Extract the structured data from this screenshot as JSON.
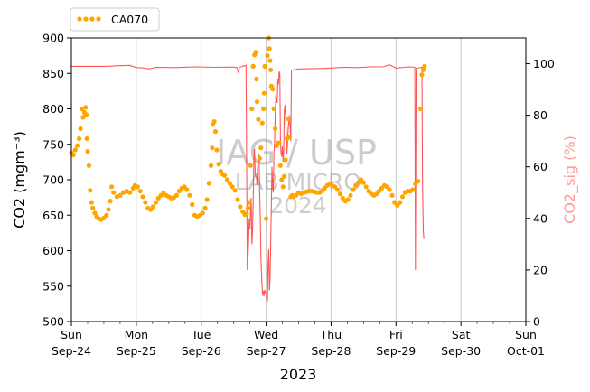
{
  "chart_data": {
    "type": "scatter",
    "xlabel": "2023",
    "ylabel_left": "CO2 (mgm⁻³)",
    "ylabel_right": "CO2_sig (%)",
    "ylim_left": [
      500,
      900
    ],
    "ylim_right": [
      0,
      110
    ],
    "xlim_days": [
      0,
      7
    ],
    "left_ticks": [
      "500",
      "550",
      "600",
      "650",
      "700",
      "750",
      "800",
      "850",
      "900"
    ],
    "right_ticks": [
      "0",
      "20",
      "40",
      "60",
      "80",
      "100"
    ],
    "x_ticks": [
      {
        "day": "Sun",
        "date": "Sep-24"
      },
      {
        "day": "Mon",
        "date": "Sep-25"
      },
      {
        "day": "Tue",
        "date": "Sep-26"
      },
      {
        "day": "Wed",
        "date": "Sep-27"
      },
      {
        "day": "Thu",
        "date": "Sep-28"
      },
      {
        "day": "Fri",
        "date": "Sep-29"
      },
      {
        "day": "Sat",
        "date": "Sep-30"
      },
      {
        "day": "Sun",
        "date": "Oct-01"
      }
    ],
    "grid": "vertical",
    "legend": {
      "placement": "top-left, outside",
      "label": "CA070"
    },
    "colors": {
      "co2": "#ffa500",
      "sig": "#ff4444"
    },
    "co2_series": {
      "name": "CA070",
      "points": [
        [
          0.0,
          738
        ],
        [
          0.03,
          735
        ],
        [
          0.06,
          742
        ],
        [
          0.09,
          748
        ],
        [
          0.12,
          758
        ],
        [
          0.14,
          772
        ],
        [
          0.16,
          800
        ],
        [
          0.18,
          788
        ],
        [
          0.2,
          795
        ],
        [
          0.22,
          802
        ],
        [
          0.23,
          792
        ],
        [
          0.24,
          758
        ],
        [
          0.25,
          740
        ],
        [
          0.27,
          720
        ],
        [
          0.29,
          685
        ],
        [
          0.31,
          668
        ],
        [
          0.33,
          660
        ],
        [
          0.36,
          653
        ],
        [
          0.39,
          648
        ],
        [
          0.42,
          645
        ],
        [
          0.46,
          644
        ],
        [
          0.5,
          646
        ],
        [
          0.54,
          650
        ],
        [
          0.57,
          658
        ],
        [
          0.6,
          670
        ],
        [
          0.62,
          690
        ],
        [
          0.65,
          682
        ],
        [
          0.7,
          676
        ],
        [
          0.75,
          678
        ],
        [
          0.8,
          682
        ],
        [
          0.85,
          684
        ],
        [
          0.9,
          682
        ],
        [
          0.95,
          688
        ],
        [
          0.98,
          692
        ],
        [
          1.02,
          690
        ],
        [
          1.06,
          684
        ],
        [
          1.1,
          676
        ],
        [
          1.14,
          668
        ],
        [
          1.18,
          660
        ],
        [
          1.22,
          658
        ],
        [
          1.26,
          662
        ],
        [
          1.3,
          668
        ],
        [
          1.34,
          674
        ],
        [
          1.38,
          678
        ],
        [
          1.42,
          681
        ],
        [
          1.46,
          678
        ],
        [
          1.5,
          676
        ],
        [
          1.54,
          674
        ],
        [
          1.58,
          675
        ],
        [
          1.62,
          678
        ],
        [
          1.66,
          684
        ],
        [
          1.7,
          688
        ],
        [
          1.74,
          690
        ],
        [
          1.78,
          686
        ],
        [
          1.82,
          678
        ],
        [
          1.86,
          665
        ],
        [
          1.9,
          650
        ],
        [
          1.94,
          648
        ],
        [
          1.98,
          650
        ],
        [
          2.02,
          653
        ],
        [
          2.06,
          660
        ],
        [
          2.09,
          672
        ],
        [
          2.12,
          695
        ],
        [
          2.15,
          720
        ],
        [
          2.17,
          745
        ],
        [
          2.18,
          778
        ],
        [
          2.2,
          782
        ],
        [
          2.22,
          768
        ],
        [
          2.24,
          742
        ],
        [
          2.27,
          722
        ],
        [
          2.3,
          712
        ],
        [
          2.33,
          708
        ],
        [
          2.36,
          706
        ],
        [
          2.4,
          700
        ],
        [
          2.44,
          695
        ],
        [
          2.48,
          690
        ],
        [
          2.52,
          685
        ],
        [
          2.56,
          672
        ],
        [
          2.6,
          662
        ],
        [
          2.64,
          655
        ],
        [
          2.67,
          651
        ],
        [
          2.7,
          652
        ],
        [
          2.72,
          660
        ],
        [
          2.74,
          668
        ],
        [
          2.76,
          720
        ],
        [
          2.78,
          800
        ],
        [
          2.8,
          860
        ],
        [
          2.82,
          876
        ],
        [
          2.84,
          880
        ],
        [
          2.85,
          842
        ],
        [
          2.86,
          810
        ],
        [
          2.88,
          785
        ],
        [
          2.9,
          730
        ],
        [
          2.92,
          745
        ],
        [
          2.94,
          780
        ],
        [
          2.96,
          800
        ],
        [
          2.97,
          822
        ],
        [
          2.98,
          860
        ],
        [
          3.0,
          645
        ],
        [
          3.02,
          875
        ],
        [
          3.04,
          900
        ],
        [
          3.05,
          885
        ],
        [
          3.06,
          868
        ],
        [
          3.07,
          855
        ],
        [
          3.08,
          832
        ],
        [
          3.1,
          828
        ],
        [
          3.12,
          800
        ],
        [
          3.14,
          772
        ],
        [
          3.16,
          748
        ],
        [
          3.18,
          752
        ],
        [
          3.2,
          752
        ],
        [
          3.22,
          720
        ],
        [
          3.24,
          700
        ],
        [
          3.26,
          690
        ],
        [
          3.28,
          705
        ],
        [
          3.3,
          728
        ],
        [
          3.32,
          758
        ],
        [
          3.34,
          786
        ],
        [
          3.36,
          760
        ],
        [
          3.38,
          676
        ],
        [
          3.4,
          678
        ],
        [
          3.42,
          676
        ],
        [
          3.46,
          678
        ],
        [
          3.5,
          682
        ],
        [
          3.54,
          680
        ],
        [
          3.58,
          682
        ],
        [
          3.62,
          683
        ],
        [
          3.66,
          684
        ],
        [
          3.7,
          684
        ],
        [
          3.74,
          683
        ],
        [
          3.78,
          682
        ],
        [
          3.82,
          682
        ],
        [
          3.86,
          684
        ],
        [
          3.9,
          688
        ],
        [
          3.94,
          692
        ],
        [
          3.98,
          694
        ],
        [
          4.02,
          692
        ],
        [
          4.06,
          690
        ],
        [
          4.1,
          686
        ],
        [
          4.14,
          680
        ],
        [
          4.18,
          674
        ],
        [
          4.22,
          670
        ],
        [
          4.26,
          672
        ],
        [
          4.3,
          678
        ],
        [
          4.34,
          686
        ],
        [
          4.38,
          692
        ],
        [
          4.42,
          696
        ],
        [
          4.46,
          700
        ],
        [
          4.5,
          696
        ],
        [
          4.54,
          690
        ],
        [
          4.58,
          684
        ],
        [
          4.62,
          680
        ],
        [
          4.66,
          678
        ],
        [
          4.7,
          680
        ],
        [
          4.74,
          684
        ],
        [
          4.78,
          688
        ],
        [
          4.82,
          692
        ],
        [
          4.86,
          690
        ],
        [
          4.9,
          686
        ],
        [
          4.94,
          678
        ],
        [
          4.98,
          668
        ],
        [
          5.02,
          664
        ],
        [
          5.06,
          668
        ],
        [
          5.1,
          676
        ],
        [
          5.14,
          682
        ],
        [
          5.18,
          684
        ],
        [
          5.22,
          684
        ],
        [
          5.26,
          686
        ],
        [
          5.3,
          694
        ],
        [
          5.34,
          698
        ],
        [
          5.38,
          800
        ],
        [
          5.4,
          848
        ],
        [
          5.42,
          855
        ],
        [
          5.44,
          860
        ]
      ]
    },
    "sig_series": {
      "name": "CO2_sig (%)",
      "points": [
        [
          0.0,
          99.0
        ],
        [
          0.5,
          99.0
        ],
        [
          0.9,
          99.4
        ],
        [
          1.0,
          98.5
        ],
        [
          1.1,
          98.4
        ],
        [
          1.2,
          98.0
        ],
        [
          1.3,
          98.6
        ],
        [
          1.6,
          98.5
        ],
        [
          1.9,
          98.8
        ],
        [
          2.2,
          98.6
        ],
        [
          2.5,
          98.7
        ],
        [
          2.55,
          98.5
        ],
        [
          2.57,
          96.5
        ],
        [
          2.59,
          98.6
        ],
        [
          2.69,
          99.4
        ],
        [
          2.7,
          60
        ],
        [
          2.71,
          20
        ],
        [
          2.72,
          25
        ],
        [
          2.73,
          32
        ],
        [
          2.74,
          40
        ],
        [
          2.75,
          36
        ],
        [
          2.76,
          42
        ],
        [
          2.77,
          48
        ],
        [
          2.78,
          30
        ],
        [
          2.79,
          35
        ],
        [
          2.8,
          46
        ],
        [
          2.81,
          62
        ],
        [
          2.82,
          67
        ],
        [
          2.83,
          58
        ],
        [
          2.84,
          56
        ],
        [
          2.85,
          56
        ],
        [
          2.86,
          53
        ],
        [
          2.87,
          60
        ],
        [
          2.88,
          64
        ],
        [
          2.89,
          65
        ],
        [
          2.9,
          50
        ],
        [
          2.91,
          40
        ],
        [
          2.92,
          25
        ],
        [
          2.93,
          18
        ],
        [
          2.94,
          12
        ],
        [
          2.95,
          10
        ],
        [
          2.96,
          12
        ],
        [
          2.97,
          10
        ],
        [
          2.98,
          12
        ],
        [
          3.0,
          11
        ],
        [
          3.01,
          8
        ],
        [
          3.02,
          8
        ],
        [
          3.03,
          22
        ],
        [
          3.04,
          28
        ],
        [
          3.05,
          12
        ],
        [
          3.06,
          16
        ],
        [
          3.07,
          30
        ],
        [
          3.08,
          45
        ],
        [
          3.09,
          60
        ],
        [
          3.1,
          52
        ],
        [
          3.11,
          50
        ],
        [
          3.12,
          65
        ],
        [
          3.13,
          70
        ],
        [
          3.14,
          80
        ],
        [
          3.15,
          88
        ],
        [
          3.16,
          85
        ],
        [
          3.17,
          85
        ],
        [
          3.18,
          94
        ],
        [
          3.19,
          92
        ],
        [
          3.2,
          97
        ],
        [
          3.21,
          96
        ],
        [
          3.22,
          70
        ],
        [
          3.23,
          65
        ],
        [
          3.24,
          64
        ],
        [
          3.25,
          68
        ],
        [
          3.26,
          62
        ],
        [
          3.27,
          66
        ],
        [
          3.28,
          82
        ],
        [
          3.29,
          84
        ],
        [
          3.3,
          80
        ],
        [
          3.32,
          65
        ],
        [
          3.34,
          75
        ],
        [
          3.36,
          80
        ],
        [
          3.38,
          70
        ],
        [
          3.39,
          97.5
        ],
        [
          3.5,
          98.0
        ],
        [
          3.9,
          98.2
        ],
        [
          4.2,
          98.6
        ],
        [
          4.4,
          98.5
        ],
        [
          4.6,
          98.8
        ],
        [
          4.8,
          98.8
        ],
        [
          4.9,
          99.6
        ],
        [
          4.95,
          99.0
        ],
        [
          5.0,
          98.3
        ],
        [
          5.2,
          98.8
        ],
        [
          5.29,
          98.6
        ],
        [
          5.3,
          20.0
        ],
        [
          5.31,
          98.2
        ],
        [
          5.4,
          98.6
        ],
        [
          5.41,
          52
        ],
        [
          5.42,
          35
        ],
        [
          5.43,
          32
        ]
      ]
    },
    "watermark": {
      "line1": "IAG / USP",
      "line2": "LAB MICRO",
      "line3": "2024"
    }
  }
}
